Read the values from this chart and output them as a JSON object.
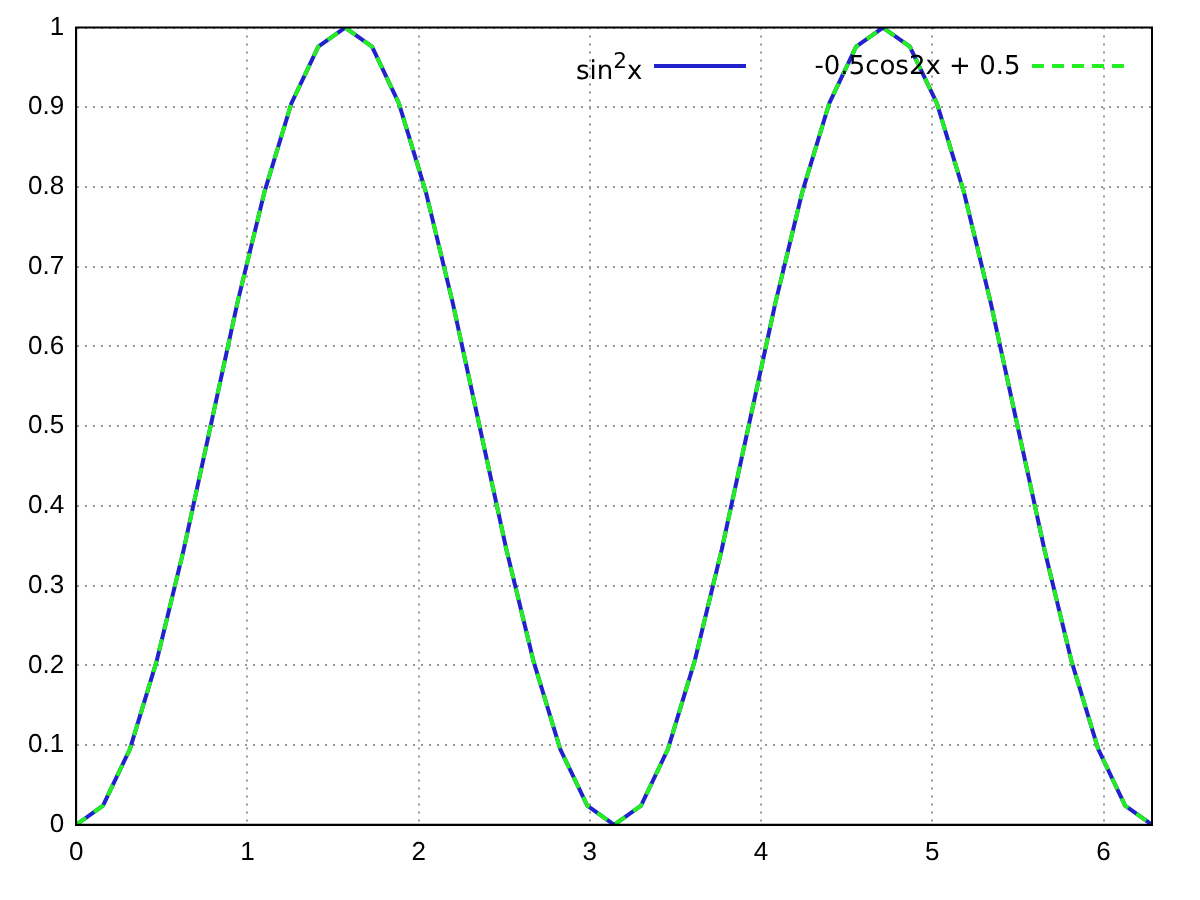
{
  "chart_data": {
    "type": "line",
    "x": [
      0,
      0.157,
      0.314,
      0.471,
      0.628,
      0.785,
      0.942,
      1.1,
      1.257,
      1.414,
      1.571,
      1.728,
      1.885,
      2.042,
      2.199,
      2.356,
      2.513,
      2.67,
      2.827,
      2.985,
      3.142,
      3.299,
      3.456,
      3.613,
      3.77,
      3.927,
      4.084,
      4.241,
      4.398,
      4.555,
      4.712,
      4.869,
      5.027,
      5.184,
      5.341,
      5.498,
      5.655,
      5.812,
      5.969,
      6.126,
      6.283
    ],
    "series": [
      {
        "name": "sin$^{2}$x",
        "color": "#2222cc",
        "line_style": "solid",
        "values": [
          0,
          0.024,
          0.095,
          0.206,
          0.345,
          0.5,
          0.655,
          0.794,
          0.905,
          0.976,
          1,
          0.976,
          0.905,
          0.794,
          0.655,
          0.5,
          0.345,
          0.206,
          0.095,
          0.024,
          0,
          0.024,
          0.095,
          0.206,
          0.345,
          0.5,
          0.655,
          0.794,
          0.905,
          0.976,
          1,
          0.976,
          0.905,
          0.794,
          0.655,
          0.5,
          0.345,
          0.206,
          0.095,
          0.024,
          0
        ]
      },
      {
        "name": "-0.5cos2x + 0.5",
        "color": "#22ee22",
        "line_style": "dashed",
        "values": [
          0,
          0.024,
          0.095,
          0.206,
          0.345,
          0.5,
          0.655,
          0.794,
          0.905,
          0.976,
          1,
          0.976,
          0.905,
          0.794,
          0.655,
          0.5,
          0.345,
          0.206,
          0.095,
          0.024,
          0,
          0.024,
          0.095,
          0.206,
          0.345,
          0.5,
          0.655,
          0.794,
          0.905,
          0.976,
          1,
          0.976,
          0.905,
          0.794,
          0.655,
          0.5,
          0.345,
          0.206,
          0.095,
          0.024,
          0
        ]
      }
    ],
    "xlim": [
      0,
      6.283
    ],
    "xticks": [
      0,
      1,
      2,
      3,
      4,
      5,
      6
    ],
    "ylim": [
      0,
      1
    ],
    "yticks": [
      0,
      0.1,
      0.2,
      0.3,
      0.4,
      0.5,
      0.6,
      0.7,
      0.8,
      0.9,
      1
    ],
    "grid": true,
    "legend": "top right",
    "marker": "none"
  }
}
